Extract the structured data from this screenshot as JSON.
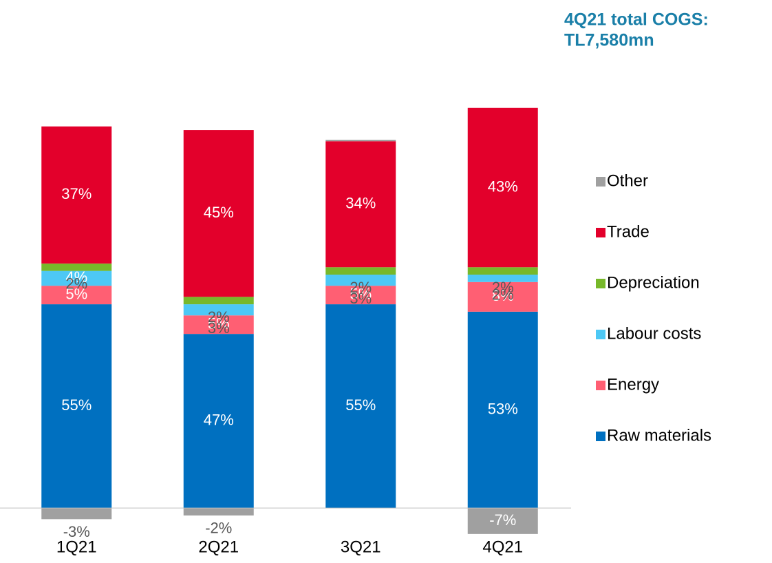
{
  "chart_data": {
    "type": "stacked_bar",
    "annotation": [
      "4Q21 total COGS:",
      "TL7,580mn"
    ],
    "categories": [
      "1Q21",
      "2Q21",
      "3Q21",
      "4Q21"
    ],
    "series": [
      {
        "name": "Raw materials",
        "color": "#0070c0",
        "values": [
          55,
          47,
          55,
          53
        ],
        "value_labels": [
          "55%",
          "47%",
          "55%",
          "53%"
        ]
      },
      {
        "name": "Energy",
        "color": "#ff5f73",
        "values": [
          5,
          5,
          5,
          8
        ],
        "value_labels": [
          "5%",
          "5%",
          "5%",
          "8%"
        ]
      },
      {
        "name": "Labour costs",
        "color": "#4dc8f5",
        "values": [
          4,
          3,
          3,
          2
        ],
        "value_labels": [
          "4%",
          "3%",
          "3%",
          "2%"
        ]
      },
      {
        "name": "Depreciation",
        "color": "#77b82a",
        "values": [
          2,
          2,
          2,
          2
        ],
        "value_labels": [
          "2%",
          "2%",
          "2%",
          "2%"
        ]
      },
      {
        "name": "Trade",
        "color": "#e3002b",
        "values": [
          37,
          45,
          34,
          43
        ],
        "value_labels": [
          "37%",
          "45%",
          "34%",
          "43%"
        ]
      },
      {
        "name": "Other",
        "color": "#a0a0a0",
        "values": [
          -3,
          -2,
          0.4,
          -7
        ],
        "value_labels": [
          "-3%",
          "-2%",
          null,
          "-7%"
        ]
      }
    ],
    "ylim": [
      -10,
      110
    ],
    "legend": "right"
  }
}
